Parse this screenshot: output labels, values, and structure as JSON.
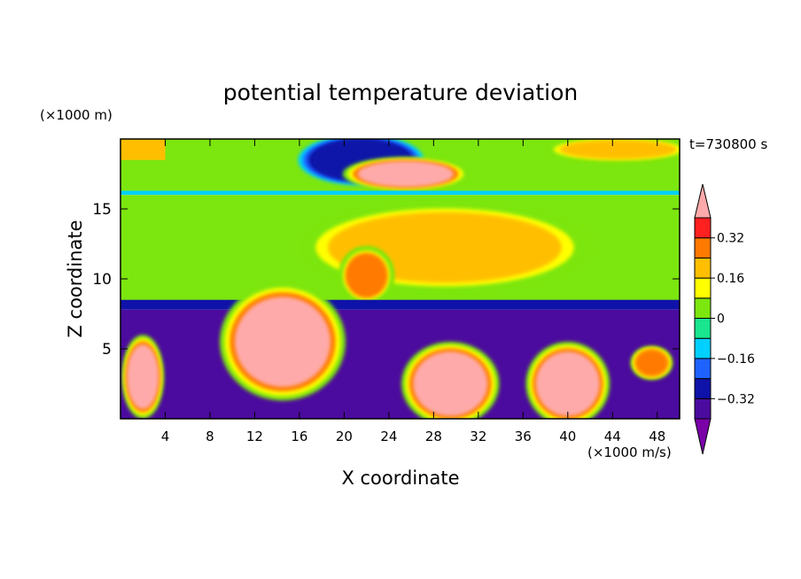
{
  "chart_data": {
    "type": "heatmap",
    "title": "potential temperature deviation",
    "xlabel": "X coordinate",
    "ylabel": "Z coordinate",
    "x_unit": "(×1000 m/s)",
    "y_unit": "(×1000 m)",
    "time_label": "t=730800 s",
    "xlim": [
      0,
      50
    ],
    "ylim": [
      0,
      20
    ],
    "x_ticks": [
      4,
      8,
      12,
      16,
      20,
      24,
      28,
      32,
      36,
      40,
      44,
      48
    ],
    "y_ticks": [
      5,
      10,
      15
    ],
    "colorbar": {
      "levels": [
        -0.4,
        -0.32,
        -0.24,
        -0.16,
        -0.08,
        0,
        0.08,
        0.16,
        0.24,
        0.32,
        0.4
      ],
      "tick_values": [
        0.32,
        0.16,
        0,
        -0.16,
        -0.32
      ],
      "tick_labels": [
        "0.32",
        "0.16",
        "0",
        "−0.16",
        "−0.32"
      ],
      "colors": [
        "#7a00a8",
        "#4b0b9e",
        "#0f12a8",
        "#1e62ff",
        "#00d0ff",
        "#19e68f",
        "#7ce60f",
        "#ffff00",
        "#ffbf00",
        "#ff7a00",
        "#ff2020",
        "#ffaaaa"
      ]
    },
    "regions": [
      {
        "name": "stratosphere-band",
        "x": [
          0,
          50
        ],
        "y": [
          16.2,
          20
        ],
        "value": 0.0
      },
      {
        "name": "top-warm-left",
        "x": [
          0,
          4
        ],
        "y": [
          18.5,
          20
        ],
        "value": 0.2
      },
      {
        "name": "top-warm-right",
        "x": [
          39,
          50
        ],
        "y": [
          18.5,
          20
        ],
        "value": 0.2
      },
      {
        "name": "upper-cold-core",
        "x": [
          17,
          26
        ],
        "y": [
          17,
          20
        ],
        "value": -0.32
      },
      {
        "name": "upper-hot-patch",
        "x": [
          21,
          30
        ],
        "y": [
          16.5,
          18.5
        ],
        "value": 0.4
      },
      {
        "name": "tropopause-line",
        "x": [
          0,
          50
        ],
        "y": [
          16,
          16.3
        ],
        "value": -0.1
      },
      {
        "name": "mid-troposphere",
        "x": [
          0,
          50
        ],
        "y": [
          8,
          16
        ],
        "value": 0.02
      },
      {
        "name": "mid-warm-core",
        "x": [
          18,
          40
        ],
        "y": [
          9.5,
          15
        ],
        "value": 0.16
      },
      {
        "name": "mid-warm-spot",
        "x": [
          20,
          24
        ],
        "y": [
          8.5,
          12
        ],
        "value": 0.24
      },
      {
        "name": "boundary-cold-line",
        "x": [
          0,
          50
        ],
        "y": [
          7.8,
          8.5
        ],
        "value": -0.32
      },
      {
        "name": "lower-cold-layer",
        "x": [
          0,
          50
        ],
        "y": [
          0,
          7.8
        ],
        "value": -0.36
      },
      {
        "name": "hot-plume-left",
        "x": [
          10,
          19
        ],
        "y": [
          2,
          9
        ],
        "value": 0.4
      },
      {
        "name": "hot-blob-x1",
        "x": [
          0.5,
          3.5
        ],
        "y": [
          0.5,
          5.5
        ],
        "value": 0.4
      },
      {
        "name": "hot-blob-x28",
        "x": [
          26,
          33
        ],
        "y": [
          0,
          5
        ],
        "value": 0.4
      },
      {
        "name": "hot-blob-x40",
        "x": [
          37,
          43
        ],
        "y": [
          0,
          5
        ],
        "value": 0.4
      },
      {
        "name": "warm-spot-x47",
        "x": [
          46,
          49
        ],
        "y": [
          3,
          5
        ],
        "value": 0.3
      }
    ]
  }
}
